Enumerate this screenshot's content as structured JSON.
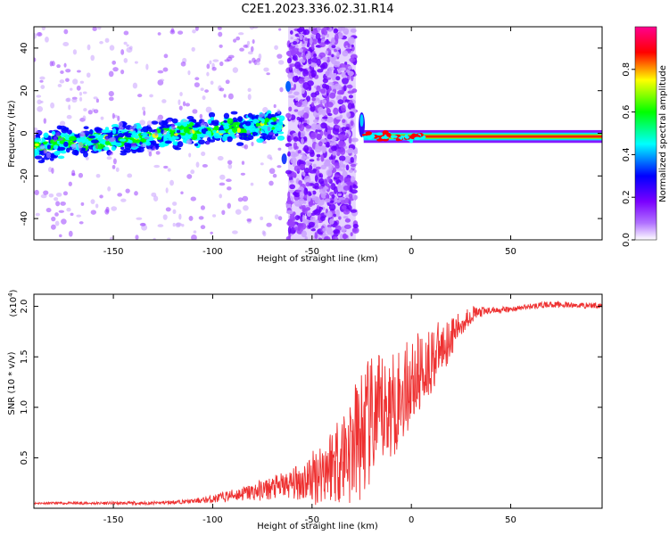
{
  "figure": {
    "title": "C2E1.2023.336.02.31.R14"
  },
  "chart_data": [
    {
      "type": "heatmap",
      "xlabel": "Height of straight line (km)",
      "ylabel": "Frequency (Hz)",
      "xlim": [
        -190,
        96
      ],
      "ylim": [
        -50,
        50
      ],
      "xticks": [
        "-150",
        "-100",
        "-50",
        "0",
        "50"
      ],
      "xtick_values": [
        -150,
        -100,
        -50,
        0,
        50
      ],
      "yticks": [
        "-40",
        "-20",
        "0",
        "20",
        "40"
      ],
      "ytick_values": [
        -40,
        -20,
        0,
        20,
        40
      ],
      "colorbar": {
        "label": "Normalized spectral amplitude",
        "range": [
          0,
          1
        ],
        "ticks": [
          "0.0",
          "0.2",
          "0.4",
          "0.6",
          "0.8"
        ],
        "tick_values": [
          0,
          0.2,
          0.4,
          0.6,
          0.8
        ],
        "colormap": [
          "#ffffff",
          "#8c00ff",
          "#0000ff",
          "#00ffff",
          "#00ff00",
          "#ffff00",
          "#ff0000",
          "#ff0090"
        ]
      },
      "regions": [
        {
          "x_from": -190,
          "x_to": -65,
          "center_hz": -6,
          "center_hz_end": 4,
          "width_hz": 8,
          "amplitude": 0.45
        },
        {
          "x_from": -62,
          "x_to": -28,
          "center_hz": 0,
          "width_hz": 100,
          "amplitude": 0.2
        },
        {
          "x_from": -24,
          "x_to": 96,
          "center_hz": -1.5,
          "width_hz": 2,
          "amplitude": 0.95
        }
      ]
    },
    {
      "type": "line",
      "xlabel": "Height of straight line (km)",
      "ylabel": "SNR (10 * v/v)",
      "scale_label": "(x10",
      "scale_exponent": "4",
      "scale_suffix": ")",
      "xlim": [
        -190,
        96
      ],
      "ylim": [
        0,
        2.12
      ],
      "xticks": [
        "-150",
        "-100",
        "-50",
        "0",
        "50"
      ],
      "xtick_values": [
        -150,
        -100,
        -50,
        0,
        50
      ],
      "yticks": [
        "0.5",
        "1.0",
        "1.5",
        "2.0"
      ],
      "ytick_values": [
        0.5,
        1.0,
        1.5,
        2.0
      ],
      "color": "#ee3030",
      "series": [
        {
          "x": [
            -190,
            -170,
            -150,
            -130,
            -110,
            -100,
            -90,
            -80,
            -70,
            -60,
            -50,
            -40,
            -30,
            -25,
            -20,
            -15,
            -10,
            -5,
            0,
            5,
            10,
            15,
            20,
            25,
            30,
            40,
            50,
            60,
            70,
            80,
            96
          ],
          "values": [
            0.05,
            0.05,
            0.05,
            0.05,
            0.07,
            0.09,
            0.13,
            0.16,
            0.2,
            0.24,
            0.3,
            0.45,
            0.6,
            0.72,
            0.85,
            0.93,
            1.02,
            1.12,
            1.25,
            1.36,
            1.47,
            1.58,
            1.7,
            1.82,
            1.92,
            1.96,
            1.97,
            2.0,
            2.02,
            2.01,
            2.01
          ]
        }
      ],
      "noise_amplitude": [
        {
          "x": -190,
          "v": 0.01
        },
        {
          "x": -110,
          "v": 0.02
        },
        {
          "x": -90,
          "v": 0.06
        },
        {
          "x": -60,
          "v": 0.15
        },
        {
          "x": -40,
          "v": 0.4
        },
        {
          "x": -25,
          "v": 0.7
        },
        {
          "x": -10,
          "v": 0.55
        },
        {
          "x": 10,
          "v": 0.35
        },
        {
          "x": 25,
          "v": 0.12
        },
        {
          "x": 40,
          "v": 0.03
        },
        {
          "x": 96,
          "v": 0.03
        }
      ]
    }
  ]
}
